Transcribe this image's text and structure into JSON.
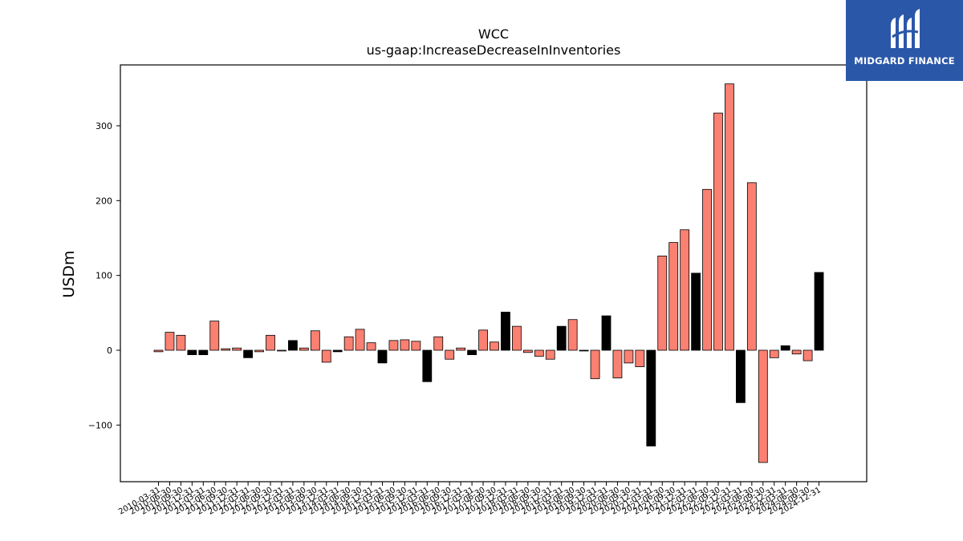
{
  "brand": {
    "name": "MIDGARD FINANCE",
    "bg_color": "#2b57a8"
  },
  "colors": {
    "positive": "#fa8072",
    "highlight": "#000000"
  },
  "chart_data": {
    "type": "bar",
    "title": "WCC",
    "subtitle": "us-gaap:IncreaseDecreaseInInventories",
    "xlabel": "",
    "ylabel": "USDm",
    "ylim": [
      -175,
      380
    ],
    "yticks": [
      -100,
      0,
      100,
      200,
      300
    ],
    "grid": false,
    "categories": [
      "2010-03-31",
      "2010-06-30",
      "2010-09-30",
      "2010-12-31",
      "2011-03-31",
      "2011-06-30",
      "2011-09-30",
      "2011-12-31",
      "2012-03-31",
      "2012-06-30",
      "2012-09-30",
      "2012-12-31",
      "2013-03-31",
      "2013-06-30",
      "2013-09-30",
      "2013-12-31",
      "2014-03-31",
      "2014-06-30",
      "2014-09-30",
      "2014-12-31",
      "2015-03-31",
      "2015-06-30",
      "2015-09-30",
      "2015-12-31",
      "2016-03-31",
      "2016-06-30",
      "2016-09-30",
      "2016-12-31",
      "2017-03-31",
      "2017-06-30",
      "2017-09-30",
      "2017-12-31",
      "2018-03-31",
      "2018-06-30",
      "2018-09-30",
      "2018-12-31",
      "2019-03-31",
      "2019-06-30",
      "2019-09-30",
      "2019-12-31",
      "2020-03-31",
      "2020-06-30",
      "2020-09-30",
      "2020-12-31",
      "2021-03-31",
      "2021-06-30",
      "2021-09-30",
      "2021-12-31",
      "2022-03-31",
      "2022-06-30",
      "2022-09-30",
      "2022-12-31",
      "2023-03-31",
      "2023-06-30",
      "2023-09-30",
      "2023-12-31",
      "2024-03-31",
      "2024-06-30",
      "2024-09-30",
      "2024-12-31"
    ],
    "values": [
      -2,
      24,
      20,
      -6,
      -6,
      39,
      2,
      3,
      -10,
      -2,
      20,
      -1,
      13,
      3,
      26,
      -16,
      -2,
      18,
      28,
      10,
      -17,
      13,
      14,
      12,
      -42,
      18,
      -12,
      3,
      -6,
      27,
      11,
      51,
      32,
      -3,
      -8,
      -12,
      32,
      41,
      -1,
      -38,
      46,
      -37,
      -17,
      -22,
      -128,
      126,
      144,
      161,
      103,
      215,
      317,
      356,
      -70,
      224,
      -150,
      -10,
      6,
      -5,
      -14,
      104
    ],
    "highlight": [
      false,
      false,
      false,
      true,
      true,
      false,
      false,
      false,
      true,
      false,
      false,
      false,
      true,
      false,
      false,
      false,
      true,
      false,
      false,
      false,
      true,
      false,
      false,
      false,
      true,
      false,
      false,
      false,
      true,
      false,
      false,
      true,
      false,
      false,
      false,
      false,
      true,
      false,
      true,
      false,
      true,
      false,
      false,
      false,
      true,
      false,
      false,
      false,
      true,
      false,
      false,
      false,
      true,
      false,
      false,
      false,
      true,
      false,
      false,
      true
    ]
  }
}
